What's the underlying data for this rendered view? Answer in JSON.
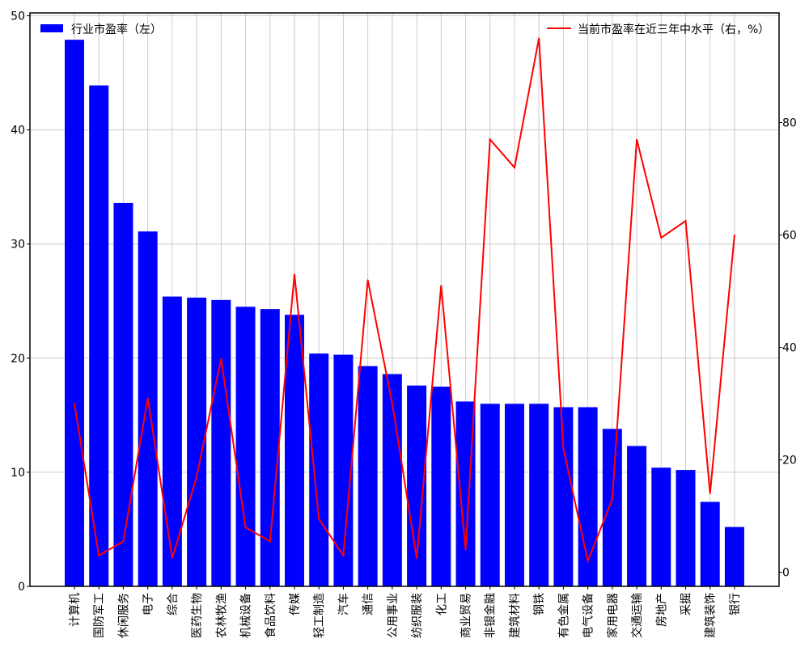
{
  "chart_data": {
    "type": "bar+line",
    "categories": [
      "计算机",
      "国防军工",
      "休闲服务",
      "电子",
      "综合",
      "医药生物",
      "农林牧渔",
      "机械设备",
      "食品饮料",
      "传媒",
      "轻工制造",
      "汽车",
      "通信",
      "公用事业",
      "纺织服装",
      "化工",
      "商业贸易",
      "非银金融",
      "建筑材料",
      "钢铁",
      "有色金属",
      "电气设备",
      "家用电器",
      "交通运输",
      "房地产",
      "采掘",
      "建筑装饰",
      "银行"
    ],
    "series": [
      {
        "name": "行业市盈率（左）",
        "type": "bar",
        "axis": "left",
        "color": "#0000ff",
        "values": [
          47.9,
          43.9,
          33.6,
          31.1,
          25.4,
          25.3,
          25.1,
          24.5,
          24.3,
          23.8,
          20.4,
          20.3,
          19.3,
          18.6,
          17.6,
          17.5,
          16.2,
          16.0,
          16.0,
          16.0,
          15.7,
          15.7,
          13.8,
          12.3,
          10.4,
          10.2,
          7.4,
          5.2
        ]
      },
      {
        "name": "当前市盈率在近三年中水平（右，%）",
        "type": "line",
        "axis": "right",
        "color": "#ff0000",
        "values": [
          30,
          3,
          5.5,
          31,
          2.5,
          17,
          38,
          8,
          5.5,
          53,
          9.5,
          3,
          52,
          30,
          2.5,
          51,
          4,
          77,
          72,
          95,
          22,
          2,
          13,
          77,
          59.5,
          62.5,
          14,
          60
        ]
      }
    ],
    "left_axis": {
      "ylim": [
        0,
        50.25
      ],
      "ticks": [
        0,
        10,
        20,
        30,
        40,
        50
      ]
    },
    "right_axis": {
      "ylim": [
        -2.5,
        99.5
      ],
      "ticks": [
        0,
        20,
        40,
        60,
        80
      ]
    },
    "grid": true,
    "legend": {
      "left_entry": "top-left",
      "right_entry": "top-right"
    }
  }
}
